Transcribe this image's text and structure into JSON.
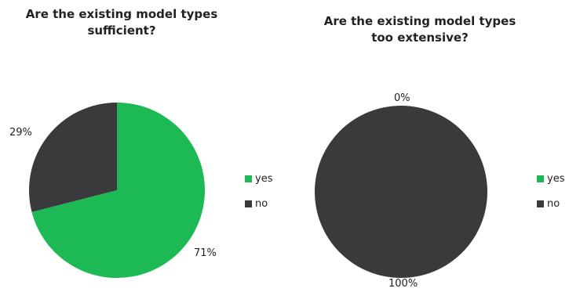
{
  "chart_data": [
    {
      "type": "pie",
      "title": "Are the existing model types sufficient?",
      "categories": [
        "yes",
        "no"
      ],
      "values": [
        71,
        29
      ],
      "labels": [
        "71%",
        "29%"
      ],
      "colors": [
        "#1db954",
        "#3a3a3c"
      ],
      "legend": [
        "yes",
        "no"
      ],
      "legend_position": "right"
    },
    {
      "type": "pie",
      "title": "Are the existing model types too extensive?",
      "categories": [
        "yes",
        "no"
      ],
      "values": [
        0,
        100
      ],
      "labels": [
        "0%",
        "100%"
      ],
      "colors": [
        "#1db954",
        "#3a3a3c"
      ],
      "legend": [
        "yes",
        "no"
      ],
      "legend_position": "right"
    }
  ]
}
